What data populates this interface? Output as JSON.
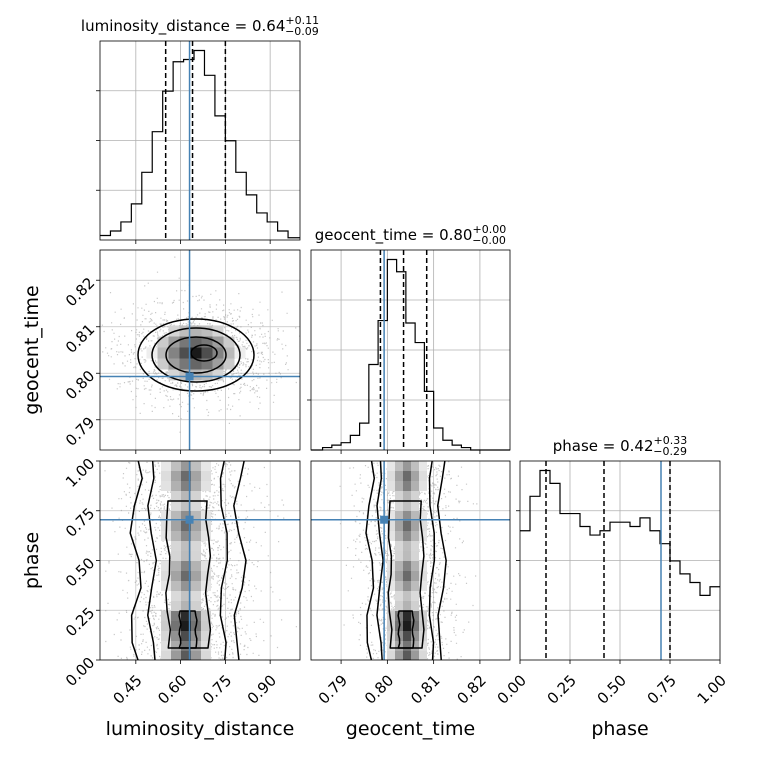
{
  "chart_data": {
    "type": "corner",
    "parameters": [
      "luminosity_distance",
      "geocent_time",
      "phase"
    ],
    "truths": [
      0.63,
      0.7993,
      0.705
    ],
    "axis_ranges": {
      "luminosity_distance": [
        0.33,
        1.0
      ],
      "geocent_time": [
        0.7835,
        0.8265
      ],
      "phase": [
        0.0,
        1.0
      ]
    },
    "ticks": {
      "luminosity_distance": [
        "0.45",
        "0.60",
        "0.75",
        "0.90"
      ],
      "geocent_time": [
        "0.79",
        "0.80",
        "0.81",
        "0.82"
      ],
      "phase": [
        "0.00",
        "0.25",
        "0.50",
        "0.75",
        "1.00"
      ]
    },
    "titles": [
      {
        "name": "luminosity_distance",
        "value": "0.64",
        "plus": "+0.11",
        "minus": "−0.09"
      },
      {
        "name": "geocent_time",
        "value": "0.80",
        "plus": "+0.00",
        "minus": "−0.00"
      },
      {
        "name": "phase",
        "value": "0.42",
        "plus": "+0.33",
        "minus": "−0.29"
      }
    ],
    "quantiles": {
      "luminosity_distance": [
        0.55,
        0.64,
        0.75
      ],
      "geocent_time": [
        0.7985,
        0.8035,
        0.8085
      ],
      "phase": [
        0.13,
        0.42,
        0.75
      ]
    },
    "histograms": {
      "luminosity_distance": {
        "edges": [
          0.33,
          0.365,
          0.4,
          0.435,
          0.47,
          0.505,
          0.54,
          0.575,
          0.61,
          0.645,
          0.68,
          0.715,
          0.75,
          0.785,
          0.82,
          0.855,
          0.89,
          0.925,
          0.96,
          1.0
        ],
        "counts": [
          2,
          4,
          8,
          16,
          30,
          48,
          66,
          79,
          80,
          84,
          73,
          55,
          44,
          30,
          20,
          12,
          8,
          4,
          1
        ]
      },
      "geocent_time": {
        "edges": [
          0.7835,
          0.786,
          0.788,
          0.79,
          0.792,
          0.794,
          0.796,
          0.798,
          0.8,
          0.802,
          0.804,
          0.806,
          0.808,
          0.81,
          0.812,
          0.814,
          0.816,
          0.818,
          0.82,
          0.822,
          0.8265
        ],
        "counts": [
          0,
          1,
          2,
          3,
          6,
          11,
          35,
          53,
          78,
          73,
          52,
          44,
          24,
          9,
          4,
          2,
          1,
          0,
          0,
          0
        ]
      },
      "phase": {
        "edges": [
          0.0,
          0.05,
          0.1,
          0.15,
          0.2,
          0.25,
          0.3,
          0.35,
          0.4,
          0.45,
          0.5,
          0.55,
          0.6,
          0.65,
          0.7,
          0.75,
          0.8,
          0.85,
          0.9,
          0.95,
          1.0
        ],
        "counts": [
          60,
          76,
          88,
          82,
          68,
          68,
          62,
          58,
          60,
          64,
          64,
          62,
          66,
          60,
          54,
          46,
          40,
          36,
          30,
          34
        ]
      }
    }
  }
}
